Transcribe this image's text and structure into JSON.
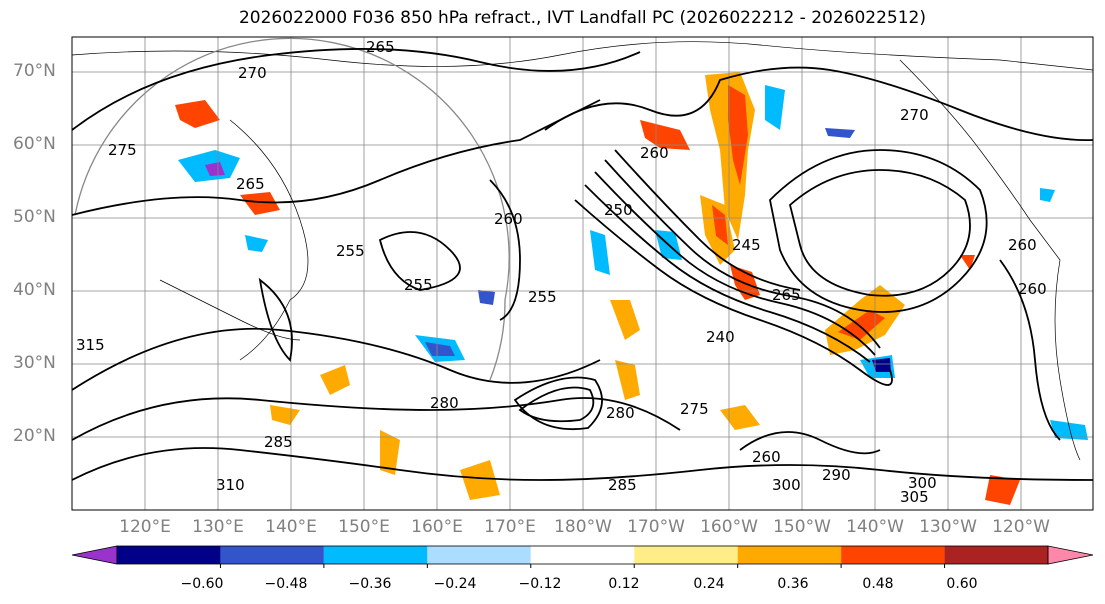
{
  "title": "2026022000 F036 850 hPa refract., IVT Landfall PC (2026022212 - 2026022512)",
  "lat_labels": [
    "70°N",
    "60°N",
    "50°N",
    "40°N",
    "30°N",
    "20°N"
  ],
  "lon_labels": [
    "120°E",
    "130°E",
    "140°E",
    "150°E",
    "160°E",
    "170°E",
    "180°W",
    "170°W",
    "160°W",
    "150°W",
    "140°W",
    "130°W",
    "120°W"
  ],
  "contour_labels": [
    "265",
    "270",
    "275",
    "265",
    "270",
    "260",
    "255",
    "255",
    "260",
    "250",
    "245",
    "240",
    "265",
    "260",
    "255",
    "260",
    "280",
    "285",
    "280",
    "275",
    "260",
    "285",
    "290",
    "300",
    "305",
    "300",
    "310",
    "315"
  ],
  "colorbar": {
    "colors": [
      "#9933cc",
      "#000088",
      "#3355cc",
      "#00bbff",
      "#aaddff",
      "#ffffff",
      "#ffee88",
      "#ffaa00",
      "#ff4400",
      "#aa2222",
      "#ff88aa"
    ],
    "tick_labels": [
      "−0.60",
      "−0.48",
      "−0.36",
      "−0.24",
      "−0.12",
      "0.12",
      "0.24",
      "0.36",
      "0.48",
      "0.60"
    ]
  },
  "colors": {
    "contour": "#000000",
    "grid": "#888888",
    "axis_label": "#808080"
  }
}
